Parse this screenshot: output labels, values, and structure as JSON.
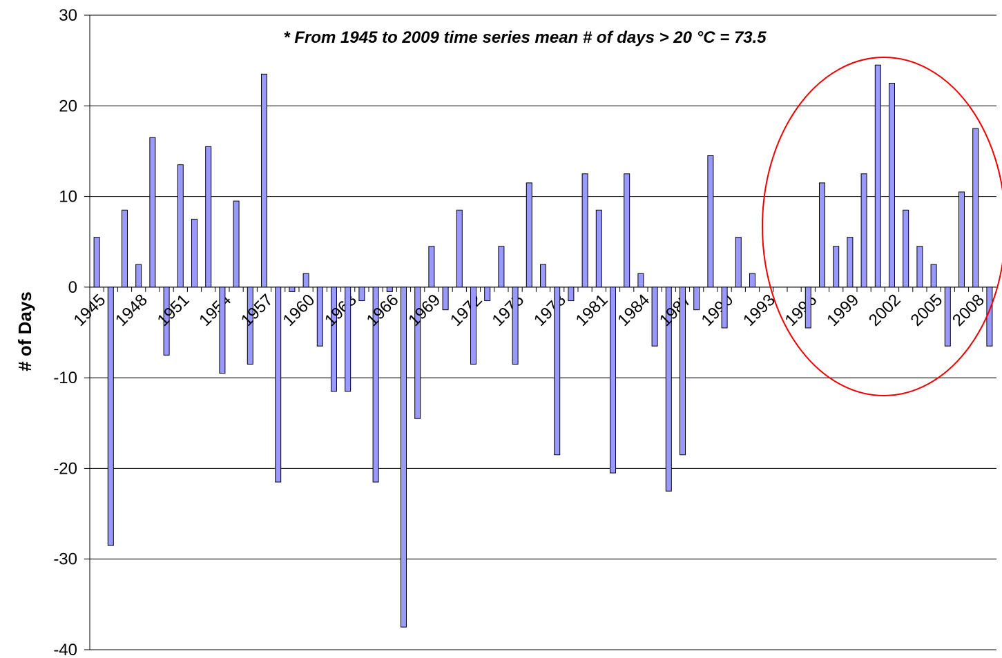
{
  "chart_data": {
    "type": "bar",
    "annotation": "* From 1945 to 2009 time series mean # of days > 20 °C = 73.5",
    "y_label": "# of Days",
    "categories": [
      "1945",
      null,
      null,
      "1948",
      null,
      null,
      "1951",
      null,
      null,
      "1954",
      null,
      null,
      "1957",
      null,
      null,
      "1960",
      null,
      null,
      "1963",
      null,
      null,
      "1966",
      null,
      null,
      "1969",
      null,
      null,
      "1972",
      null,
      null,
      "1975",
      null,
      null,
      "1978",
      null,
      null,
      "1981",
      null,
      null,
      "1984",
      null,
      null,
      "1987",
      null,
      null,
      "1990",
      null,
      null,
      "1993",
      null,
      null,
      "1996",
      null,
      null,
      "1999",
      null,
      null,
      "2002",
      null,
      null,
      "2005",
      null,
      null,
      "2008",
      null
    ],
    "values": [
      5.5,
      -28.5,
      8.5,
      2.5,
      16.5,
      -7.5,
      13.5,
      7.5,
      15.5,
      -9.5,
      9.5,
      -8.5,
      23.5,
      -21.5,
      -0.5,
      1.5,
      -6.5,
      -11.5,
      -11.5,
      -1.5,
      -21.5,
      -0.5,
      -37.5,
      -14.5,
      4.5,
      -2.5,
      8.5,
      -8.5,
      -1.5,
      4.5,
      -8.5,
      11.5,
      2.5,
      -18.5,
      -1.5,
      12.5,
      8.5,
      -20.5,
      12.5,
      1.5,
      -6.5,
      -22.5,
      -18.5,
      -2.5,
      14.5,
      -4.5,
      5.5,
      1.5,
      0,
      0,
      0,
      -4.5,
      11.5,
      4.5,
      5.5,
      12.5,
      24.5,
      22.5,
      8.5,
      4.5,
      2.5,
      -6.5,
      10.5,
      17.5,
      -6.5
    ],
    "color": "#9999ff",
    "ylim": [
      -40,
      30
    ],
    "yticks": [
      -40,
      -30,
      -20,
      -10,
      0,
      10,
      20,
      30
    ],
    "grid": true
  }
}
